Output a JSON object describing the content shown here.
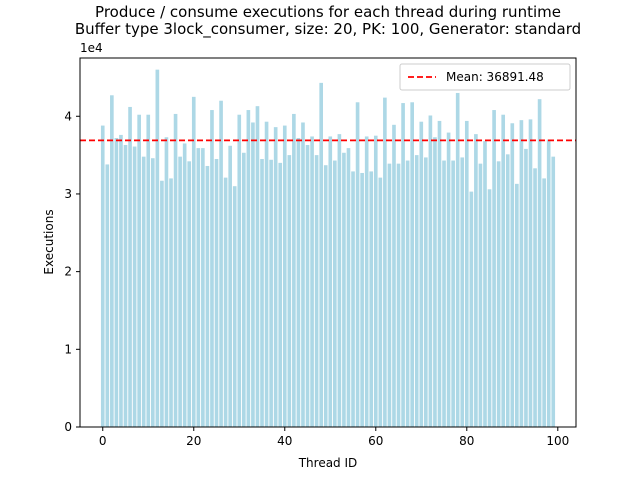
{
  "chart_data": {
    "type": "bar",
    "title": "Produce / consume executions for each thread during runtime",
    "subtitle": "Buffer type 3lock_consumer, size: 20, PK: 100, Generator: standard",
    "xlabel": "Thread ID",
    "ylabel": "Executions",
    "y_offset_label": "1e4",
    "xlim": [
      -5,
      104
    ],
    "ylim": [
      0,
      47500
    ],
    "xticks": [
      0,
      20,
      40,
      60,
      80,
      100
    ],
    "yticks": [
      0,
      10000,
      20000,
      30000,
      40000
    ],
    "ytick_labels": [
      "0",
      "1",
      "2",
      "3",
      "4"
    ],
    "bar_color": "#add8e6",
    "mean_color": "#ff0000",
    "mean_value": 36891.48,
    "legend": {
      "label": "Mean: 36891.48",
      "position": "top-right"
    },
    "x": [
      0,
      1,
      2,
      3,
      4,
      5,
      6,
      7,
      8,
      9,
      10,
      11,
      12,
      13,
      14,
      15,
      16,
      17,
      18,
      19,
      20,
      21,
      22,
      23,
      24,
      25,
      26,
      27,
      28,
      29,
      30,
      31,
      32,
      33,
      34,
      35,
      36,
      37,
      38,
      39,
      40,
      41,
      42,
      43,
      44,
      45,
      46,
      47,
      48,
      49,
      50,
      51,
      52,
      53,
      54,
      55,
      56,
      57,
      58,
      59,
      60,
      61,
      62,
      63,
      64,
      65,
      66,
      67,
      68,
      69,
      70,
      71,
      72,
      73,
      74,
      75,
      76,
      77,
      78,
      79,
      80,
      81,
      82,
      83,
      84,
      85,
      86,
      87,
      88,
      89,
      90,
      91,
      92,
      93,
      94,
      95,
      96,
      97,
      98,
      99
    ],
    "values": [
      38800,
      33800,
      42700,
      37200,
      37600,
      36300,
      41200,
      36100,
      40200,
      34800,
      40200,
      34600,
      46000,
      31700,
      37300,
      32000,
      40300,
      34800,
      36500,
      34200,
      42500,
      35900,
      35900,
      33600,
      40800,
      34500,
      42000,
      32100,
      36200,
      31000,
      40200,
      35300,
      40800,
      39200,
      41300,
      34500,
      39300,
      34400,
      38600,
      34000,
      38800,
      35000,
      40300,
      37200,
      39200,
      36300,
      37400,
      35000,
      44300,
      33700,
      37400,
      34300,
      37700,
      35300,
      35900,
      32900,
      41800,
      32700,
      37400,
      32900,
      37500,
      32100,
      42400,
      33900,
      38900,
      33900,
      41700,
      34300,
      41800,
      35000,
      39300,
      34700,
      40100,
      37300,
      39400,
      34300,
      37900,
      34300,
      43000,
      34700,
      39400,
      30300,
      37700,
      33900,
      36800,
      30600,
      40800,
      34200,
      40200,
      35100,
      39100,
      31300,
      39500,
      35800,
      39600,
      33300,
      42200,
      32000,
      37000,
      34800
    ]
  }
}
